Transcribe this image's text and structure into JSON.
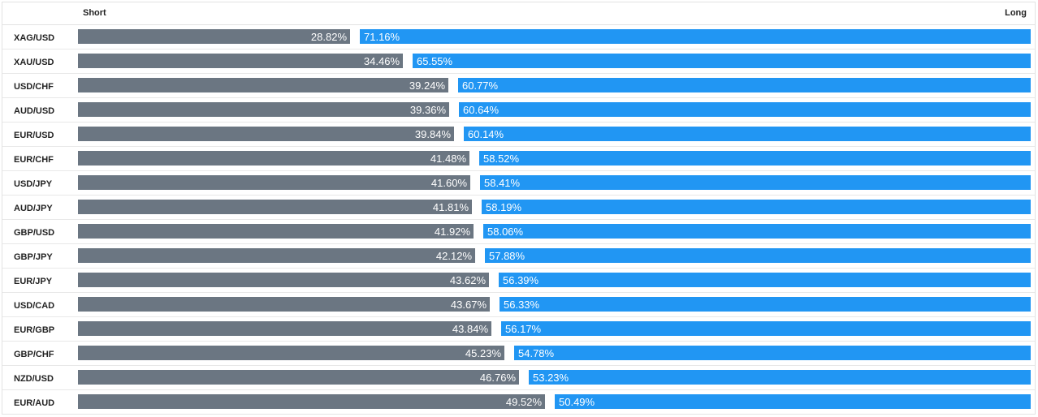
{
  "header": {
    "short_label": "Short",
    "long_label": "Long"
  },
  "colors": {
    "short": "#6b7682",
    "long": "#2196f3"
  },
  "rows": [
    {
      "pair": "XAG/USD",
      "short": 28.82,
      "long": 71.16,
      "short_label": "28.82%",
      "long_label": "71.16%"
    },
    {
      "pair": "XAU/USD",
      "short": 34.46,
      "long": 65.55,
      "short_label": "34.46%",
      "long_label": "65.55%"
    },
    {
      "pair": "USD/CHF",
      "short": 39.24,
      "long": 60.77,
      "short_label": "39.24%",
      "long_label": "60.77%"
    },
    {
      "pair": "AUD/USD",
      "short": 39.36,
      "long": 60.64,
      "short_label": "39.36%",
      "long_label": "60.64%"
    },
    {
      "pair": "EUR/USD",
      "short": 39.84,
      "long": 60.14,
      "short_label": "39.84%",
      "long_label": "60.14%"
    },
    {
      "pair": "EUR/CHF",
      "short": 41.48,
      "long": 58.52,
      "short_label": "41.48%",
      "long_label": "58.52%"
    },
    {
      "pair": "USD/JPY",
      "short": 41.6,
      "long": 58.41,
      "short_label": "41.60%",
      "long_label": "58.41%"
    },
    {
      "pair": "AUD/JPY",
      "short": 41.81,
      "long": 58.19,
      "short_label": "41.81%",
      "long_label": "58.19%"
    },
    {
      "pair": "GBP/USD",
      "short": 41.92,
      "long": 58.06,
      "short_label": "41.92%",
      "long_label": "58.06%"
    },
    {
      "pair": "GBP/JPY",
      "short": 42.12,
      "long": 57.88,
      "short_label": "42.12%",
      "long_label": "57.88%"
    },
    {
      "pair": "EUR/JPY",
      "short": 43.62,
      "long": 56.39,
      "short_label": "43.62%",
      "long_label": "56.39%"
    },
    {
      "pair": "USD/CAD",
      "short": 43.67,
      "long": 56.33,
      "short_label": "43.67%",
      "long_label": "56.33%"
    },
    {
      "pair": "EUR/GBP",
      "short": 43.84,
      "long": 56.17,
      "short_label": "43.84%",
      "long_label": "56.17%"
    },
    {
      "pair": "GBP/CHF",
      "short": 45.23,
      "long": 54.78,
      "short_label": "45.23%",
      "long_label": "54.78%"
    },
    {
      "pair": "NZD/USD",
      "short": 46.76,
      "long": 53.23,
      "short_label": "46.76%",
      "long_label": "53.23%"
    },
    {
      "pair": "EUR/AUD",
      "short": 49.52,
      "long": 50.49,
      "short_label": "49.52%",
      "long_label": "50.49%"
    }
  ]
}
